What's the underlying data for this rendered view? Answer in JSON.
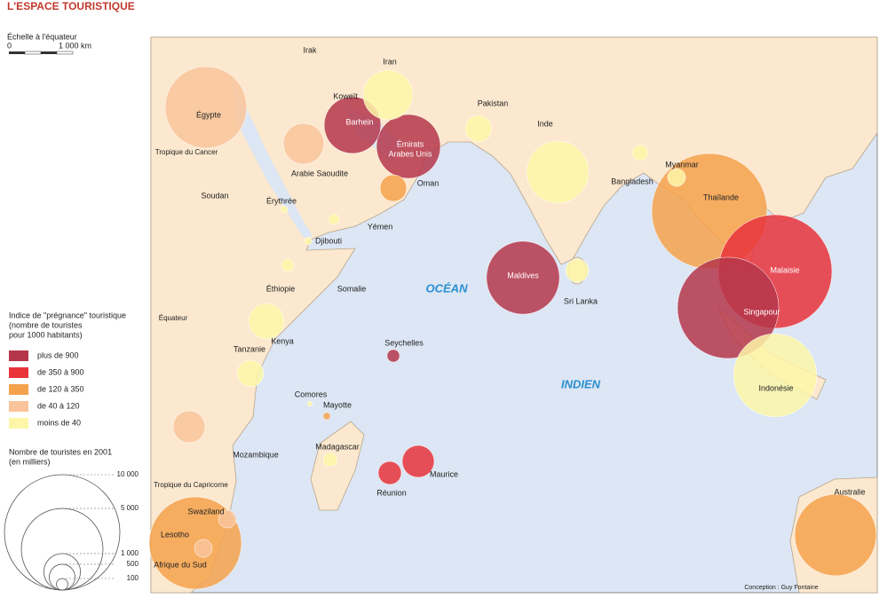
{
  "title": "L'ESPACE TOURISTIQUE",
  "scale": {
    "title": "Échelle à l'équateur",
    "labels": [
      "0",
      "1 000 km"
    ]
  },
  "legend": {
    "title": [
      "Indice de \"prégnance\" touristique",
      "(nombre de touristes",
      "pour 1000 habitants)"
    ],
    "classes": [
      {
        "label": "plus de 900",
        "color": "#b5364a"
      },
      {
        "label": "de 350 à 900",
        "color": "#e8333b"
      },
      {
        "label": "de 120 à 350",
        "color": "#f4a24c"
      },
      {
        "label": "de 40 à 120",
        "color": "#f9c49b"
      },
      {
        "label": "moins de 40",
        "color": "#fdf6a8"
      }
    ]
  },
  "size_legend": {
    "title": [
      "Nombre de touristes en 2001",
      "(en milliers)"
    ],
    "ticks": [
      {
        "value": 10000,
        "label": "10 000"
      },
      {
        "value": 5000,
        "label": "5 000"
      },
      {
        "value": 1000,
        "label": "1 000"
      },
      500,
      100
    ]
  },
  "circles": [
    {
      "label": "Égypte",
      "tourists": 5000,
      "color": "#f9c49b"
    },
    {
      "label": "Arabie Saoudite",
      "tourists": 1250,
      "color": "#f9c49b"
    },
    {
      "label": "Iran",
      "tourists": 1860,
      "color": "#fdf6a8"
    },
    {
      "label": "Barhein",
      "tourists": 2420,
      "color": "#b5364a"
    },
    {
      "label": [
        "Émirats",
        "Arabes Unis"
      ],
      "tourists": 3070,
      "color": "#b5364a"
    },
    {
      "label": "Oman",
      "tourists": 530,
      "color": "#f4a24c"
    },
    {
      "label": "Pakistan",
      "tourists": 530,
      "color": "#fdf6a8"
    },
    {
      "label": "Inde",
      "tourists": 2900,
      "color": "#fdf6a8"
    },
    {
      "label": "Bangladesh",
      "tourists": 190,
      "color": "#fdf6a8"
    },
    {
      "label": "Myanmar",
      "tourists": 240,
      "color": "#fdf6a8"
    },
    {
      "label": "Thaïlande",
      "tourists": 10000,
      "color": "#f4a24c"
    },
    {
      "label": "Malaisie",
      "tourists": 9700,
      "color": "#e8333b"
    },
    {
      "label": "Singapour",
      "tourists": 7700,
      "color": "#b5364a"
    },
    {
      "label": "Indonésie",
      "tourists": 5200,
      "color": "#fdf6a8"
    },
    {
      "label": "Maldives",
      "tourists": 4000,
      "color": "#b5364a"
    },
    {
      "label": "Sri Lanka",
      "tourists": 400,
      "color": "#fdf6a8"
    },
    {
      "label": "Seychelles",
      "tourists": 120,
      "color": "#b5364a"
    },
    {
      "label": "Réunion",
      "tourists": 400,
      "color": "#e8333b"
    },
    {
      "label": "Maurice",
      "tourists": 770,
      "color": "#e8333b"
    },
    {
      "label": "Madagascar",
      "tourists": 150,
      "color": "#fdf6a8"
    },
    {
      "label": "Mayotte",
      "tourists": 40,
      "color": "#f4a24c"
    },
    {
      "label": "Comores",
      "tourists": 20,
      "color": "#fdf6a8"
    },
    {
      "label": "Djibouti",
      "tourists": 40,
      "color": "#fdf6a8"
    },
    {
      "label": "Érythrée",
      "tourists": 40,
      "color": "#fdf6a8"
    },
    {
      "label": "Yémen",
      "tourists": 85,
      "color": "#fdf6a8"
    },
    {
      "label": "Éthiopie",
      "tourists": 120,
      "color": "#fdf6a8"
    },
    {
      "label": "Kenya",
      "tourists": 950,
      "color": "#fdf6a8"
    },
    {
      "label": "Tanzanie",
      "tourists": 530,
      "color": "#fdf6a8"
    },
    {
      "label": null,
      "tourists": 770,
      "color": "#f9c49b"
    },
    {
      "label": "Afrique du Sud",
      "tourists": 6400,
      "color": "#f4a24c"
    },
    {
      "label": "Swaziland",
      "tourists": 240,
      "color": "#f9c49b"
    },
    {
      "label": "Lesotho",
      "tourists": 240,
      "color": "#f9c49b"
    },
    {
      "label": "Australie",
      "tourists": 5000,
      "color": "#f4a24c"
    }
  ],
  "labels": [
    "Irak",
    "Koweït",
    "Soudan",
    "Somalie",
    "Mozambique",
    "Tropique du Cancer",
    "Équateur",
    "Tropique du Capricorne",
    "OCÉAN",
    "INDIEN",
    "Conception : Guy Fontaine"
  ]
}
